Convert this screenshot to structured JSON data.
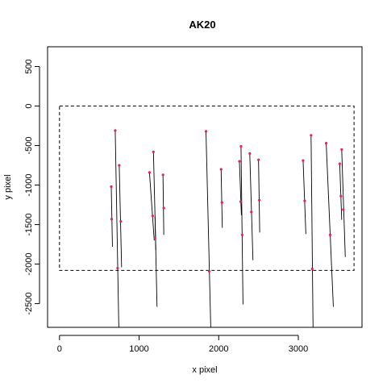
{
  "chart_data": {
    "type": "scatter",
    "title": "AK20",
    "xlabel": "x pixel",
    "ylabel": "y pixel",
    "xlim": [
      -150,
      3800
    ],
    "ylim": [
      -2800,
      750
    ],
    "xticks": [
      0,
      1000,
      2000,
      3000
    ],
    "xtick_labels": [
      "0",
      "1000",
      "2000",
      "3000"
    ],
    "yticks": [
      500,
      0,
      -500,
      -1000,
      -1500,
      -2000,
      -2500
    ],
    "ytick_labels": [
      "500",
      "0",
      "-500",
      "-1000",
      "-1500",
      "-2000",
      "-2500"
    ],
    "grid": false,
    "frame_rect": {
      "x0": 0,
      "x1": 3700,
      "y0": -2080,
      "y1": 0
    },
    "point_color": "#e0245e",
    "line_color": "#000000",
    "tracks": [
      {
        "x1": 650,
        "y1": -1020,
        "x2": 665,
        "y2": -1780,
        "points": [
          [
            650,
            -1020
          ],
          [
            655,
            -1430
          ]
        ]
      },
      {
        "x1": 700,
        "y1": -310,
        "x2": 745,
        "y2": -2800,
        "points": [
          [
            700,
            -310
          ],
          [
            730,
            -2050
          ]
        ]
      },
      {
        "x1": 750,
        "y1": -750,
        "x2": 780,
        "y2": -2040,
        "points": [
          [
            750,
            -750
          ],
          [
            770,
            -1460
          ]
        ]
      },
      {
        "x1": 1130,
        "y1": -840,
        "x2": 1190,
        "y2": -1700,
        "points": [
          [
            1130,
            -840
          ],
          [
            1170,
            -1390
          ]
        ]
      },
      {
        "x1": 1180,
        "y1": -580,
        "x2": 1210,
        "y2": -1820,
        "points": [
          [
            1180,
            -580
          ],
          [
            1200,
            -1670
          ]
        ]
      },
      {
        "x1": 1200,
        "y1": -1400,
        "x2": 1225,
        "y2": -2540,
        "points": []
      },
      {
        "x1": 1300,
        "y1": -870,
        "x2": 1310,
        "y2": -1630,
        "points": [
          [
            1300,
            -870
          ],
          [
            1310,
            -1290
          ]
        ]
      },
      {
        "x1": 1840,
        "y1": -320,
        "x2": 1900,
        "y2": -2800,
        "points": [
          [
            1840,
            -320
          ],
          [
            1880,
            -2090
          ]
        ]
      },
      {
        "x1": 2030,
        "y1": -800,
        "x2": 2045,
        "y2": -1540,
        "points": [
          [
            2030,
            -800
          ],
          [
            2040,
            -1220
          ]
        ]
      },
      {
        "x1": 2260,
        "y1": -700,
        "x2": 2285,
        "y2": -1380,
        "points": [
          [
            2260,
            -700
          ],
          [
            2275,
            -1210
          ]
        ]
      },
      {
        "x1": 2280,
        "y1": -510,
        "x2": 2305,
        "y2": -2510,
        "points": [
          [
            2280,
            -510
          ],
          [
            2295,
            -1630
          ]
        ]
      },
      {
        "x1": 2390,
        "y1": -600,
        "x2": 2430,
        "y2": -1950,
        "points": [
          [
            2390,
            -600
          ],
          [
            2410,
            -1340
          ]
        ]
      },
      {
        "x1": 2500,
        "y1": -680,
        "x2": 2515,
        "y2": -1600,
        "points": [
          [
            2500,
            -680
          ],
          [
            2510,
            -1190
          ]
        ]
      },
      {
        "x1": 3060,
        "y1": -690,
        "x2": 3095,
        "y2": -1620,
        "points": [
          [
            3060,
            -690
          ],
          [
            3080,
            -1200
          ]
        ]
      },
      {
        "x1": 3160,
        "y1": -370,
        "x2": 3185,
        "y2": -2800,
        "points": [
          [
            3160,
            -370
          ],
          [
            3175,
            -2060
          ]
        ]
      },
      {
        "x1": 3350,
        "y1": -470,
        "x2": 3440,
        "y2": -2540,
        "points": [
          [
            3350,
            -470
          ],
          [
            3400,
            -1630
          ]
        ]
      },
      {
        "x1": 3520,
        "y1": -730,
        "x2": 3545,
        "y2": -1440,
        "points": [
          [
            3520,
            -730
          ],
          [
            3535,
            -1140
          ]
        ]
      },
      {
        "x1": 3545,
        "y1": -550,
        "x2": 3590,
        "y2": -1910,
        "points": [
          [
            3545,
            -550
          ],
          [
            3565,
            -1310
          ]
        ]
      }
    ]
  }
}
